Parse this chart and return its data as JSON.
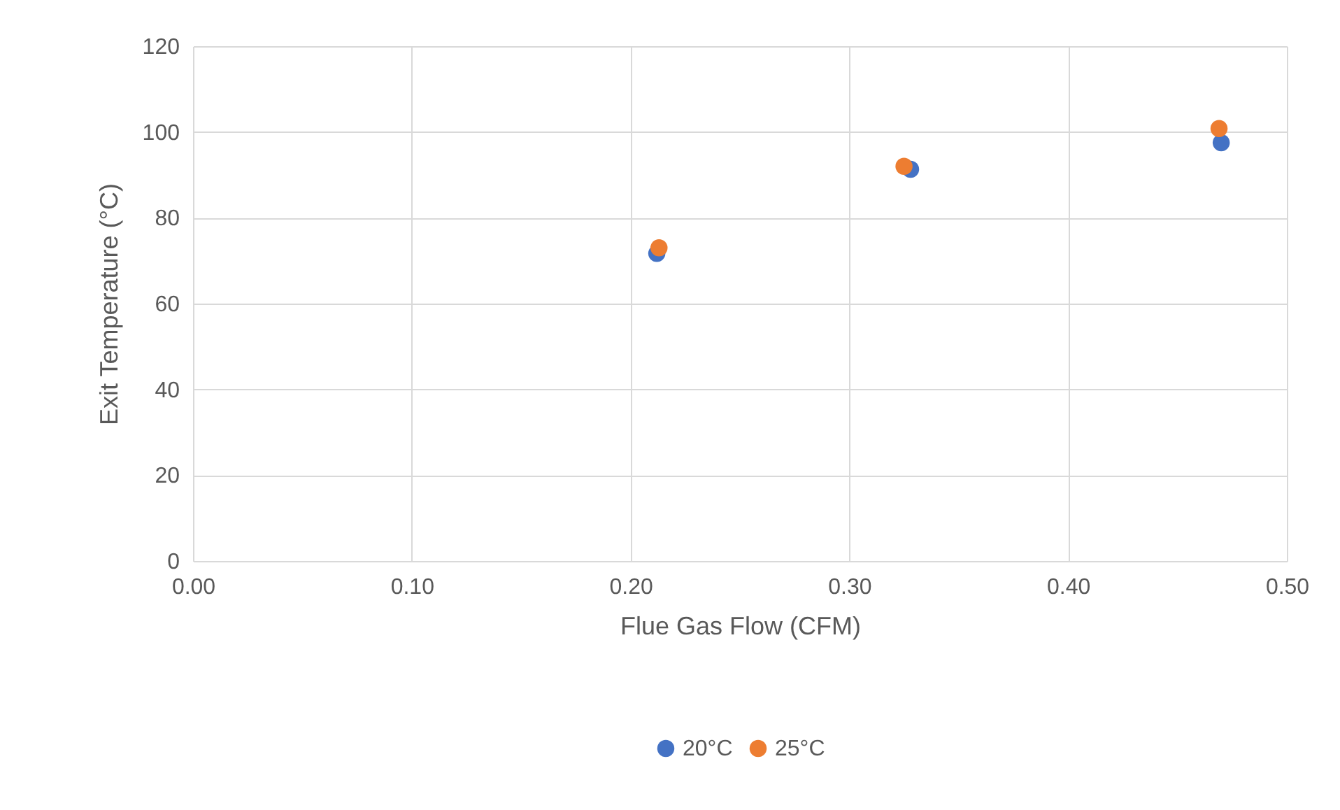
{
  "chart_data": {
    "type": "scatter",
    "xlabel": "Flue Gas Flow (CFM)",
    "ylabel": "Exit Temperature (°C)",
    "series": [
      {
        "name": "20°C",
        "color": "#4472c4",
        "x": [
          0.212,
          0.328,
          0.47
        ],
        "values": [
          71.7,
          91.3,
          97.5
        ]
      },
      {
        "name": "25°C",
        "color": "#ed7d31",
        "x": [
          0.213,
          0.325,
          0.469
        ],
        "values": [
          73.0,
          92.0,
          100.8
        ]
      }
    ],
    "xlim": [
      0,
      0.5
    ],
    "xticks": [
      {
        "value": 0,
        "label": "0.00"
      },
      {
        "value": 0.1,
        "label": "0.10"
      },
      {
        "value": 0.2,
        "label": "0.20"
      },
      {
        "value": 0.3,
        "label": "0.30"
      },
      {
        "value": 0.4,
        "label": "0.40"
      },
      {
        "value": 0.5,
        "label": "0.50"
      }
    ],
    "ylim": [
      0,
      120
    ],
    "yticks": [
      0,
      20,
      40,
      60,
      80,
      100,
      120
    ],
    "grid": true,
    "legend": "bottom",
    "marker": "circle"
  }
}
